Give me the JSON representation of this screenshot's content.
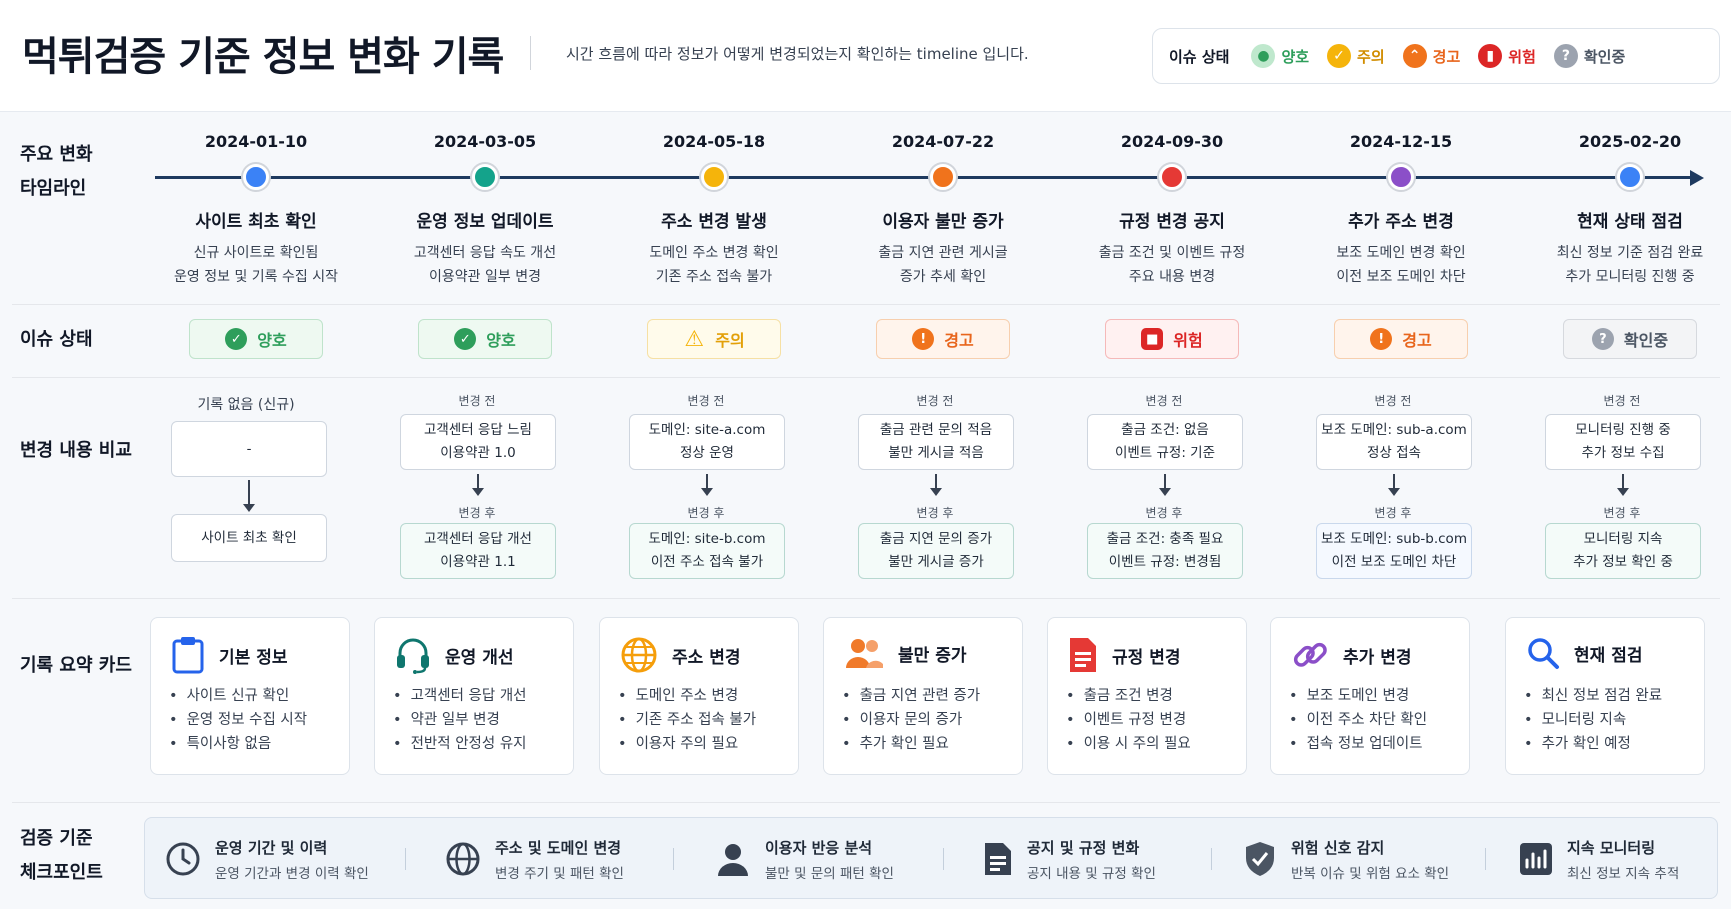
{
  "header": {
    "title": "먹튀검증 기준 정보 변화 기록",
    "subtitle": "시간 흐름에 따라 정보가 어떻게 변경되었는지 확인하는 timeline 입니다."
  },
  "legend": {
    "title": "이슈 상태",
    "items": [
      {
        "label": "양호",
        "glyph": "●",
        "color": "#2e9e5b",
        "icon": "good-icon"
      },
      {
        "label": "주의",
        "glyph": "✓",
        "color": "#e3a008",
        "icon": "caution-icon"
      },
      {
        "label": "경고",
        "glyph": "⌃",
        "color": "#e8651c",
        "icon": "warning-icon"
      },
      {
        "label": "위험",
        "glyph": "▮",
        "color": "#dc2626",
        "icon": "danger-icon"
      },
      {
        "label": "확인중",
        "glyph": "?",
        "color": "#6b7280",
        "icon": "checking-icon"
      }
    ]
  },
  "row_labels": {
    "timeline": [
      "주요 변화",
      "타임라인"
    ],
    "status": "이슈 상태",
    "compare": "변경 내용 비교",
    "cards": "기록 요약 카드",
    "checkpoints": [
      "검증 기준",
      "체크포인트"
    ]
  },
  "events": [
    {
      "date": "2024-01-10",
      "dot_color": "#3b82f6",
      "title": "사이트 최초 확인",
      "desc": [
        "신규 사이트로 확인됨",
        "운영 정보 및 기록 수집 시작"
      ],
      "status": {
        "label": "양호",
        "glyph": "✓",
        "color": "#2e9e5b",
        "bg": "#eef9f1",
        "border": "#bfe3cb"
      }
    },
    {
      "date": "2024-03-05",
      "dot_color": "#14a38b",
      "title": "운영 정보 업데이트",
      "desc": [
        "고객센터 응답 속도 개선",
        "이용약관 일부 변경"
      ],
      "status": {
        "label": "양호",
        "glyph": "✓",
        "color": "#2e9e5b",
        "bg": "#eef9f1",
        "border": "#bfe3cb"
      }
    },
    {
      "date": "2024-05-18",
      "dot_color": "#f5b40b",
      "title": "주소 변경 발생",
      "desc": [
        "도메인 주소 변경 확인",
        "기존 주소 접속 불가"
      ],
      "status": {
        "label": "주의",
        "glyph": "!",
        "color": "#e3a008",
        "bg": "#fffbeb",
        "border": "#f6e0a4"
      }
    },
    {
      "date": "2024-07-22",
      "dot_color": "#f0731c",
      "title": "이용자 불만 증가",
      "desc": [
        "출금 지연 관련 게시글",
        "증가 추세 확인"
      ],
      "status": {
        "label": "경고",
        "glyph": "!",
        "color": "#e8651c",
        "bg": "#fff4ec",
        "border": "#f7cfae"
      }
    },
    {
      "date": "2024-09-30",
      "dot_color": "#e53935",
      "title": "규정 변경 공지",
      "desc": [
        "출금 조건 및 이벤트 규정",
        "주요 내용 변경"
      ],
      "status": {
        "label": "위험",
        "glyph": "■",
        "color": "#dc2626",
        "bg": "#fff1f1",
        "border": "#f5b9b9"
      }
    },
    {
      "date": "2024-12-15",
      "dot_color": "#8b4fc8",
      "title": "추가 주소 변경",
      "desc": [
        "보조 도메인 변경 확인",
        "이전 보조 도메인 차단"
      ],
      "status": {
        "label": "경고",
        "glyph": "!",
        "color": "#e8651c",
        "bg": "#fff4ec",
        "border": "#f7cfae"
      }
    },
    {
      "date": "2025-02-20",
      "dot_color": "#3b82f6",
      "title": "현재 상태 점검",
      "desc": [
        "최신 정보 기준 점검 완료",
        "추가 모니터링 진행 중"
      ],
      "status": {
        "label": "확인중",
        "glyph": "?",
        "color": "#6b7280",
        "bg": "#f3f4f6",
        "border": "#d6d9de"
      }
    }
  ],
  "comparisons": [
    {
      "before_label": "기록 없음 (신규)",
      "before": [
        "-"
      ],
      "after_label": "",
      "after": [
        "사이트 최초 확인"
      ]
    },
    {
      "before_label": "변경 전",
      "before": [
        "고객센터 응답 느림",
        "이용약관 1.0"
      ],
      "after_label": "변경 후",
      "after": [
        "고객센터 응답 개선",
        "이용약관 1.1"
      ]
    },
    {
      "before_label": "변경 전",
      "before": [
        "도메인: site-a.com",
        "정상 운영"
      ],
      "after_label": "변경 후",
      "after": [
        "도메인: site-b.com",
        "이전 주소 접속 불가"
      ]
    },
    {
      "before_label": "변경 전",
      "before": [
        "출금 관련 문의 적음",
        "불만 게시글 적음"
      ],
      "after_label": "변경 후",
      "after": [
        "출금 지연 문의 증가",
        "불만 게시글 증가"
      ]
    },
    {
      "before_label": "변경 전",
      "before": [
        "출금 조건: 없음",
        "이벤트 규정: 기준"
      ],
      "after_label": "변경 후",
      "after": [
        "출금 조건: 충족 필요",
        "이벤트 규정: 변경됨"
      ]
    },
    {
      "before_label": "변경 전",
      "before": [
        "보조 도메인: sub-a.com",
        "정상 접속"
      ],
      "after_label": "변경 후",
      "after": [
        "보조 도메인: sub-b.com",
        "이전 보조 도메인 차단"
      ]
    },
    {
      "before_label": "변경 전",
      "before": [
        "모니터링 진행 중",
        "추가 정보 수집"
      ],
      "after_label": "변경 후",
      "after": [
        "모니터링 지속",
        "추가 정보 확인 중"
      ]
    }
  ],
  "cards": [
    {
      "title": "기본 정보",
      "icon": "clipboard-icon",
      "color": "#2563eb",
      "items": [
        "사이트 신규 확인",
        "운영 정보 수집 시작",
        "특이사항 없음"
      ]
    },
    {
      "title": "운영 개선",
      "icon": "headset-icon",
      "color": "#0f766e",
      "items": [
        "고객센터 응답 개선",
        "약관 일부 변경",
        "전반적 안정성 유지"
      ]
    },
    {
      "title": "주소 변경",
      "icon": "globe-icon",
      "color": "#f59e0b",
      "items": [
        "도메인 주소 변경",
        "기존 주소 접속 불가",
        "이용자 주의 필요"
      ]
    },
    {
      "title": "불만 증가",
      "icon": "users-icon",
      "color": "#f07a2a",
      "items": [
        "출금 지연 관련 증가",
        "이용자 문의 증가",
        "추가 확인 필요"
      ]
    },
    {
      "title": "규정 변경",
      "icon": "document-icon",
      "color": "#e53935",
      "items": [
        "출금 조건 변경",
        "이벤트 규정 변경",
        "이용 시 주의 필요"
      ]
    },
    {
      "title": "추가 변경",
      "icon": "link-icon",
      "color": "#8b4fc8",
      "items": [
        "보조 도메인 변경",
        "이전 주소 차단 확인",
        "접속 정보 업데이트"
      ]
    },
    {
      "title": "현재 점검",
      "icon": "search-icon",
      "color": "#2563eb",
      "items": [
        "최신 정보 점검 완료",
        "모니터링 지속",
        "추가 확인 예정"
      ]
    }
  ],
  "checkpoints": [
    {
      "title": "운영 기간 및 이력",
      "desc": "운영 기간과 변경 이력 확인",
      "icon": "clock-icon"
    },
    {
      "title": "주소 및 도메인 변경",
      "desc": "변경 주기 및 패턴 확인",
      "icon": "globe-icon"
    },
    {
      "title": "이용자 반응 분석",
      "desc": "불만 및 문의 패턴 확인",
      "icon": "user-icon"
    },
    {
      "title": "공지 및 규정 변화",
      "desc": "공지 내용 및 규정 확인",
      "icon": "document-icon"
    },
    {
      "title": "위험 신호 감지",
      "desc": "반복 이슈 및 위험 요소 확인",
      "icon": "shield-icon"
    },
    {
      "title": "지속 모니터링",
      "desc": "최신 정보 지속 추적",
      "icon": "chart-icon"
    }
  ]
}
